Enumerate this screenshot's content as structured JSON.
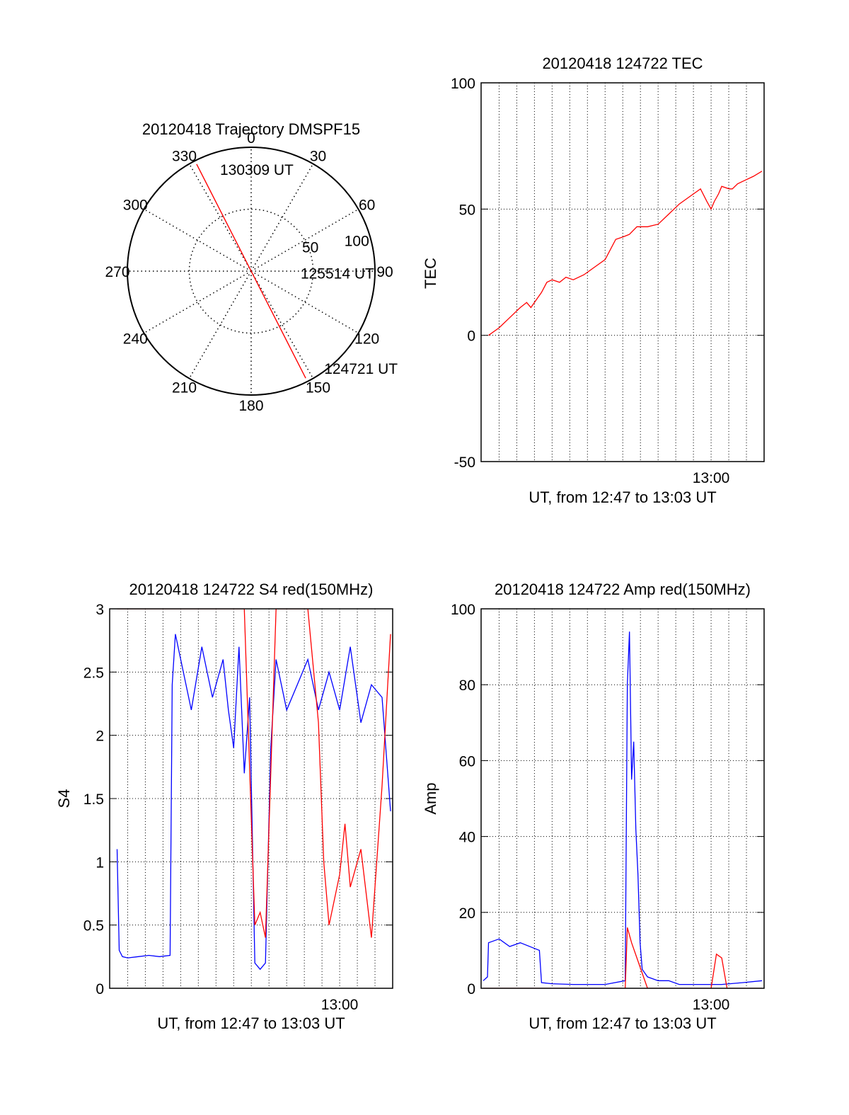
{
  "chart_data": [
    {
      "type": "polar",
      "title": "20120418 Trajectory DMSPF15",
      "angle_labels": [
        "0",
        "30",
        "60",
        "90",
        "120",
        "150",
        "180",
        "210",
        "240",
        "270",
        "300",
        "330"
      ],
      "radial_labels": [
        "50",
        "100"
      ],
      "rlim": [
        0,
        100
      ],
      "grid": true,
      "series": [
        {
          "color": "#ff0000",
          "points": [
            {
              "azimuth": 333,
              "radius": 97
            },
            {
              "azimuth": 333,
              "radius": 5
            },
            {
              "azimuth": 153,
              "radius": 5
            },
            {
              "azimuth": 153,
              "radius": 97
            }
          ]
        }
      ],
      "annotations": [
        {
          "text": "130309 UT",
          "azimuth": 343,
          "radius": 86
        },
        {
          "text": "125514 UT",
          "azimuth": 92,
          "radius": 40
        },
        {
          "text": "124721 UT",
          "azimuth": 143,
          "radius": 98
        }
      ]
    },
    {
      "type": "line",
      "title": "20120418 124722 TEC",
      "xlabel": "UT, from 12:47 to 13:03 UT",
      "ylabel": "TEC",
      "xlim": [
        12.783,
        13.05
      ],
      "ylim": [
        -50,
        100
      ],
      "yticks": [
        -50,
        0,
        50,
        100
      ],
      "xticks": [
        {
          "value": 13.0,
          "label": "13:00"
        }
      ],
      "grid": true,
      "series": [
        {
          "color": "#ff0000",
          "x": [
            12.79,
            12.8,
            12.81,
            12.82,
            12.826,
            12.83,
            12.84,
            12.845,
            12.85,
            12.857,
            12.863,
            12.87,
            12.88,
            12.89,
            12.9,
            12.91,
            12.917,
            12.923,
            12.93,
            12.937,
            12.94,
            12.95,
            12.96,
            12.97,
            12.98,
            12.99,
            12.996,
            13.0,
            13.003,
            13.007,
            13.01,
            13.017,
            13.02,
            13.025,
            13.03,
            13.04,
            13.048
          ],
          "y": [
            0,
            3,
            7,
            11,
            13,
            11,
            17,
            21,
            22,
            21,
            23,
            22,
            24,
            27,
            30,
            38,
            39,
            40,
            43,
            43,
            43,
            44,
            48,
            52,
            55,
            58,
            53,
            50,
            53,
            56,
            59,
            58,
            58,
            60,
            61,
            63,
            65
          ]
        }
      ]
    },
    {
      "type": "line",
      "title": "20120418 124722 S4 red(150MHz)",
      "xlabel": "UT, from 12:47 to 13:03 UT",
      "ylabel": "S4",
      "xlim": [
        12.783,
        13.05
      ],
      "ylim": [
        0,
        3
      ],
      "yticks": [
        0,
        0.5,
        1,
        1.5,
        2,
        2.5,
        3
      ],
      "ytick_labels": [
        "0",
        "0.5",
        "1",
        "1.5",
        "2",
        "2.5",
        "3"
      ],
      "xticks": [
        {
          "value": 13.0,
          "label": "13:00"
        }
      ],
      "grid": true,
      "series": [
        {
          "color": "#0000ff",
          "x": [
            12.79,
            12.792,
            12.795,
            12.8,
            12.81,
            12.82,
            12.83,
            12.84,
            12.842,
            12.845,
            12.85,
            12.86,
            12.87,
            12.88,
            12.89,
            12.895,
            12.9,
            12.905,
            12.91,
            12.915,
            12.92,
            12.925,
            12.93,
            12.935,
            12.94,
            12.95,
            12.96,
            12.97,
            12.98,
            12.99,
            13.0,
            13.01,
            13.02,
            13.03,
            13.04,
            13.048
          ],
          "y": [
            1.1,
            0.3,
            0.25,
            0.24,
            0.25,
            0.26,
            0.25,
            0.26,
            2.4,
            2.8,
            2.6,
            2.2,
            2.7,
            2.3,
            2.6,
            2.2,
            1.9,
            2.7,
            1.7,
            2.3,
            0.2,
            0.15,
            0.2,
            1.9,
            2.6,
            2.2,
            2.4,
            2.6,
            2.2,
            2.5,
            2.2,
            2.7,
            2.1,
            2.4,
            2.3,
            1.4
          ]
        },
        {
          "color": "#ff0000",
          "x": [
            12.79,
            12.8,
            12.81,
            12.82,
            12.83,
            12.84,
            12.85,
            12.86,
            12.87,
            12.88,
            12.89,
            12.9,
            12.91,
            12.92,
            12.925,
            12.93,
            12.94,
            12.95,
            12.96,
            12.97,
            12.98,
            12.985,
            12.99,
            13.0,
            13.005,
            13.01,
            13.02,
            13.03,
            13.04,
            13.048
          ],
          "y": [
            3,
            3,
            3,
            3,
            3,
            3,
            3,
            3,
            3,
            3,
            3,
            3,
            3,
            0.5,
            0.6,
            0.4,
            3,
            3,
            3,
            3,
            2.1,
            1.0,
            0.5,
            0.9,
            1.3,
            0.8,
            1.1,
            0.4,
            1.6,
            2.8
          ]
        }
      ]
    },
    {
      "type": "line",
      "title": "20120418 124722 Amp red(150MHz)",
      "xlabel": "UT, from 12:47 to 13:03 UT",
      "ylabel": "Amp",
      "xlim": [
        12.783,
        13.05
      ],
      "ylim": [
        0,
        100
      ],
      "yticks": [
        0,
        20,
        40,
        60,
        80,
        100
      ],
      "xticks": [
        {
          "value": 13.0,
          "label": "13:00"
        }
      ],
      "grid": true,
      "series": [
        {
          "color": "#0000ff",
          "x": [
            12.785,
            12.789,
            12.79,
            12.8,
            12.81,
            12.82,
            12.838,
            12.84,
            12.85,
            12.87,
            12.9,
            12.919,
            12.921,
            12.923,
            12.925,
            12.927,
            12.929,
            12.931,
            12.933,
            12.935,
            12.94,
            12.95,
            12.96,
            12.97,
            12.99,
            13.01,
            13.03,
            13.048
          ],
          "y": [
            2,
            3,
            12,
            13,
            11,
            12,
            10,
            1.5,
            1.2,
            1,
            1,
            2,
            80,
            94,
            55,
            65,
            42,
            30,
            12,
            5,
            3,
            2,
            2,
            1,
            1,
            1,
            1.5,
            2
          ]
        },
        {
          "color": "#ff0000",
          "x": [
            12.785,
            12.838,
            12.919,
            12.921,
            12.925,
            12.93,
            12.935,
            12.94,
            12.99,
            13.0,
            13.005,
            13.01,
            13.015,
            13.048
          ],
          "y": [
            0,
            0,
            0,
            16,
            12,
            8,
            4,
            0,
            0,
            0,
            9,
            8,
            0,
            0
          ]
        }
      ]
    }
  ]
}
